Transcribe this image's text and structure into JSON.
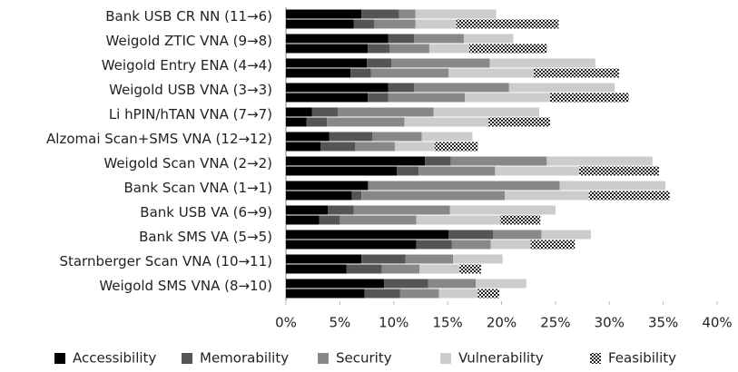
{
  "chart_data": {
    "type": "stacked-bar-pair",
    "orientation": "horizontal",
    "categories": [
      "Bank USB CR NN (11→6)",
      "Weigold ZTIC VNA (9→8)",
      "Weigold Entry ENA (4→4)",
      "Weigold USB VNA (3→3)",
      "Li hPIN/hTAN VNA (7→7)",
      "Alzomai Scan+SMS VNA (12→12)",
      "Weigold Scan VNA (2→2)",
      "Bank Scan VNA (1→1)",
      "Bank USB VA (6→9)",
      "Bank SMS VA (5→5)",
      "Starnberger Scan VNA (10→11)",
      "Weigold SMS VNA (8→10)"
    ],
    "series": [
      {
        "name": "Accessibility",
        "color": "#000000",
        "values": [
          7.0,
          9.5,
          7.5,
          9.5,
          2.4,
          4.0,
          12.9,
          7.6,
          3.9,
          15.1,
          7.0,
          9.1
        ],
        "values_lower": [
          6.3,
          7.6,
          6.0,
          7.6,
          1.9,
          3.2,
          10.3,
          6.1,
          3.1,
          12.1,
          5.6,
          7.3
        ]
      },
      {
        "name": "Memorability",
        "color": "#555555",
        "values": [
          3.5,
          2.4,
          2.3,
          2.4,
          2.4,
          4.0,
          2.4,
          0.1,
          2.4,
          4.1,
          4.1,
          4.1
        ],
        "values_lower": [
          1.9,
          2.0,
          1.9,
          1.9,
          1.9,
          3.2,
          2.0,
          0.9,
          1.9,
          3.3,
          3.3,
          3.3
        ]
      },
      {
        "name": "Security",
        "color": "#888888",
        "values": [
          1.5,
          4.6,
          9.1,
          8.8,
          8.9,
          4.6,
          8.9,
          17.7,
          8.9,
          4.5,
          4.4,
          4.4
        ],
        "values_lower": [
          3.8,
          3.7,
          7.2,
          7.1,
          7.2,
          3.7,
          7.1,
          13.3,
          7.1,
          3.6,
          3.5,
          3.6
        ]
      },
      {
        "name": "Vulnerability",
        "color": "#cccccc",
        "values": [
          7.5,
          4.6,
          9.8,
          9.8,
          9.8,
          4.7,
          9.8,
          9.8,
          9.8,
          4.6,
          4.6,
          4.7
        ],
        "values_lower": [
          3.8,
          3.7,
          7.9,
          7.9,
          7.8,
          3.7,
          7.8,
          7.8,
          7.8,
          3.7,
          3.7,
          3.6
        ]
      },
      {
        "name": "Feasibility",
        "color": "#222222",
        "pattern": "checker",
        "values_lower": [
          9.5,
          7.2,
          7.9,
          7.3,
          5.7,
          4.0,
          7.4,
          7.5,
          3.7,
          4.1,
          2.0,
          2.0
        ]
      }
    ],
    "xlim": [
      0,
      40
    ],
    "xticks": [
      {
        "value": 0,
        "label": "0%"
      },
      {
        "value": 5,
        "label": "5%"
      },
      {
        "value": 10,
        "label": "10%"
      },
      {
        "value": 15,
        "label": "15%"
      },
      {
        "value": 20,
        "label": "20%"
      },
      {
        "value": 25,
        "label": "25%"
      },
      {
        "value": 30,
        "label": "30%"
      },
      {
        "value": 35,
        "label": "35%"
      },
      {
        "value": 40,
        "label": "40%"
      }
    ],
    "grid": false,
    "legend": "bottom"
  }
}
